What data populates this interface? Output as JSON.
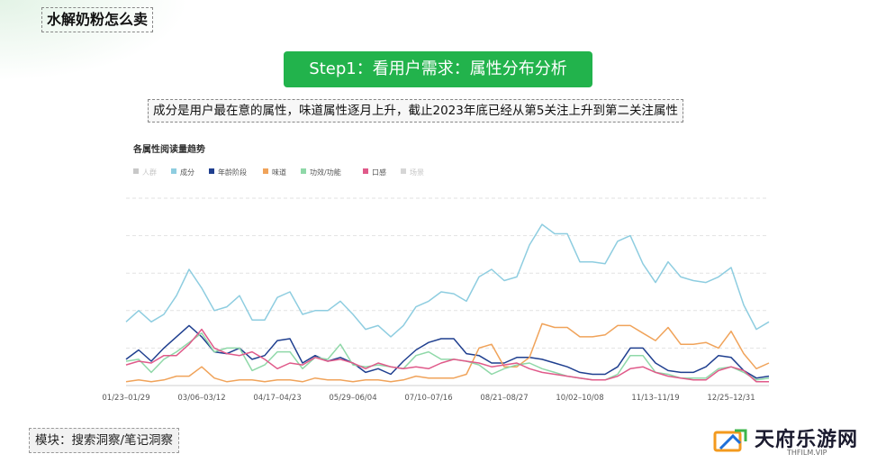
{
  "page": {
    "title": "水解奶粉怎么卖",
    "step_banner": "Step1：看用户需求：属性分布分析",
    "subtitle": "成分是用户最在意的属性，味道属性逐月上升，截止2023年底已经从第5关注上升到第二关注属性",
    "footer_note": "模块：搜索洞察/笔记洞察"
  },
  "brand": {
    "name": "天府乐游网",
    "sub": "THFILM.VIP",
    "colors": {
      "orange": "#f39a1e",
      "blue": "#1e6fd9",
      "green": "#3cb54a"
    }
  },
  "colors": {
    "accent_green": "#22b34c"
  },
  "chart_data": {
    "type": "line",
    "title": "各属性阅读量趋势",
    "xlabel": "",
    "ylabel": "",
    "ylim": [
      0,
      100
    ],
    "grid": true,
    "legend_position": "top-left",
    "x_tick_labels": [
      "01/23–01/29",
      "03/06–03/12",
      "04/17–04/23",
      "05/29–06/04",
      "07/10–07/16",
      "08/21–08/27",
      "10/02–10/08",
      "11/13–11/19",
      "12/25–12/31"
    ],
    "x_tick_indices": [
      0,
      6,
      12,
      18,
      24,
      30,
      36,
      42,
      48
    ],
    "series": [
      {
        "name": "人群",
        "color": "#c8c8c8",
        "muted": true,
        "values": []
      },
      {
        "name": "成分",
        "color": "#8ecde0",
        "values": [
          34,
          40,
          34,
          38,
          48,
          62,
          52,
          40,
          42,
          48,
          35,
          35,
          47,
          50,
          38,
          40,
          40,
          45,
          38,
          30,
          32,
          26,
          32,
          42,
          45,
          50,
          49,
          45,
          58,
          62,
          56,
          58,
          75,
          86,
          81,
          81,
          66,
          66,
          65,
          77,
          80,
          65,
          55,
          66,
          58,
          56,
          55,
          58,
          63,
          43,
          30,
          34
        ]
      },
      {
        "name": "年龄阶段",
        "color": "#1f3f8f",
        "values": [
          14,
          19,
          13,
          20,
          26,
          32,
          26,
          18,
          17,
          20,
          14,
          16,
          24,
          25,
          12,
          16,
          13,
          15,
          12,
          7,
          9,
          6,
          13,
          19,
          23,
          25,
          25,
          17,
          16,
          12,
          12,
          15,
          15,
          14,
          12,
          10,
          7,
          6,
          6,
          10,
          20,
          20,
          12,
          8,
          7,
          7,
          10,
          16,
          15,
          8,
          4,
          5
        ]
      },
      {
        "name": "味道",
        "color": "#f0a35a",
        "values": [
          2,
          3,
          2,
          3,
          5,
          5,
          10,
          4,
          2,
          3,
          3,
          2,
          3,
          3,
          2,
          4,
          3,
          3,
          2,
          3,
          3,
          2,
          3,
          5,
          4,
          4,
          4,
          6,
          20,
          22,
          10,
          10,
          15,
          33,
          31,
          31,
          26,
          26,
          27,
          32,
          32,
          28,
          24,
          31,
          22,
          22,
          23,
          20,
          29,
          17,
          9,
          12
        ]
      },
      {
        "name": "功效/功能",
        "color": "#8fd8a8",
        "values": [
          13,
          14,
          7,
          14,
          18,
          23,
          28,
          18,
          20,
          20,
          8,
          11,
          18,
          18,
          9,
          15,
          14,
          22,
          11,
          10,
          11,
          10,
          9,
          16,
          18,
          14,
          14,
          13,
          11,
          6,
          9,
          11,
          12,
          9,
          7,
          5,
          4,
          3,
          3,
          6,
          16,
          16,
          7,
          6,
          4,
          4,
          4,
          9,
          10,
          7,
          3,
          4
        ]
      },
      {
        "name": "口感",
        "color": "#e05a8a",
        "values": [
          11,
          13,
          12,
          16,
          16,
          22,
          30,
          20,
          17,
          16,
          18,
          14,
          9,
          12,
          11,
          15,
          13,
          14,
          12,
          9,
          12,
          10,
          9,
          10,
          9,
          12,
          14,
          13,
          12,
          10,
          11,
          12,
          9,
          7,
          6,
          5,
          4,
          3,
          3,
          5,
          9,
          10,
          7,
          5,
          4,
          3,
          3,
          8,
          10,
          8,
          2,
          2
        ]
      },
      {
        "name": "场景",
        "color": "#d6d6d6",
        "muted": true,
        "values": []
      }
    ]
  }
}
